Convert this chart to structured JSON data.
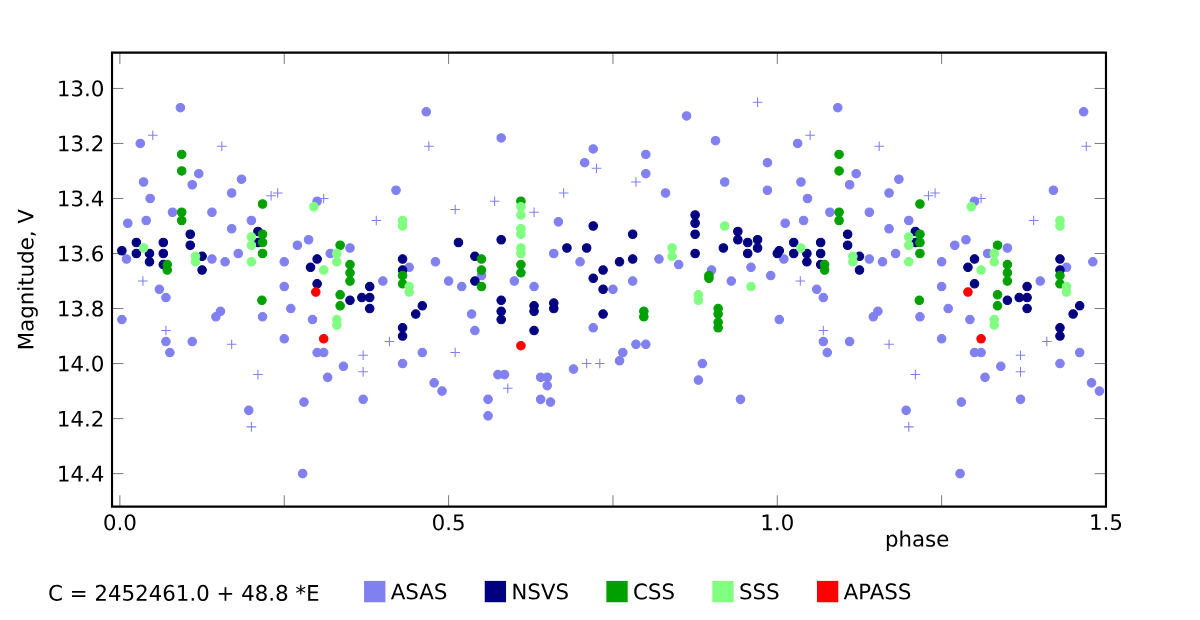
{
  "chart_data": {
    "type": "scatter",
    "xlabel": "phase",
    "ylabel": "Magnitude, V",
    "annotations": [
      "C = 2452461.0 + 48.8 *E"
    ],
    "xlim": [
      -0.012,
      1.5
    ],
    "ylim": [
      14.52,
      12.87
    ],
    "xticks": [
      {
        "value": 0,
        "label": "0.0"
      },
      {
        "value": 0.25,
        "label": null
      },
      {
        "value": 0.5,
        "label": "0.5"
      },
      {
        "value": 0.75,
        "label": null
      },
      {
        "value": 1,
        "label": "1.0"
      },
      {
        "value": 1.25,
        "label": null
      },
      {
        "value": 1.5,
        "label": "1.5"
      }
    ],
    "yticks": [
      {
        "value": 13,
        "label": "13.0"
      },
      13.2,
      13.4,
      13.6,
      13.8,
      {
        "value": 14,
        "label": "14.0"
      },
      14.2,
      14.4
    ],
    "grid": false,
    "legend": "bottom",
    "series": [
      {
        "name": "ASAS",
        "color": "#8080f0",
        "marker": "circle",
        "x": [
          0.003,
          0.012,
          0.01,
          0.031,
          0.036,
          0.04,
          0.046,
          0.06,
          0.07,
          0.07,
          0.076,
          0.08,
          0.092,
          0.11,
          0.11,
          0.12,
          0.14,
          0.14,
          0.146,
          0.153,
          0.16,
          0.17,
          0.17,
          0.185,
          0.18,
          0.196,
          0.2,
          0.217,
          0.25,
          0.25,
          0.25,
          0.26,
          0.27,
          0.278,
          0.28,
          0.287,
          0.293,
          0.3,
          0.3,
          0.31,
          0.316,
          0.32,
          0.34,
          0.35,
          0.37,
          0.4,
          0.42,
          0.43,
          0.44,
          0.46,
          0.466,
          0.478,
          0.48,
          0.49,
          0.5,
          0.52,
          0.535,
          0.54,
          0.55,
          0.56,
          0.56,
          0.575,
          0.58,
          0.585,
          0.6,
          0.63,
          0.64,
          0.64,
          0.65,
          0.65,
          0.655,
          0.66,
          0.667,
          0.69,
          0.7,
          0.707,
          0.72,
          0.72,
          0.75,
          0.76,
          0.765,
          0.78,
          0.785,
          0.8,
          0.8,
          0.8,
          0.82,
          0.83,
          0.85,
          0.862,
          0.886,
          0.88,
          0.9,
          0.906,
          0.92,
          0.93,
          0.944,
          0.96,
          0.985,
          0.985,
          0.99,
          1.003,
          1.012,
          1.01,
          1.031,
          1.036,
          1.04,
          1.046,
          1.06,
          1.07,
          1.07,
          1.076,
          1.08,
          1.092,
          1.11,
          1.11,
          1.12,
          1.14,
          1.14,
          1.146,
          1.153,
          1.16,
          1.17,
          1.17,
          1.185,
          1.18,
          1.196,
          1.2,
          1.217,
          1.25,
          1.25,
          1.25,
          1.26,
          1.27,
          1.278,
          1.28,
          1.287,
          1.293,
          1.3,
          1.3,
          1.31,
          1.316,
          1.32,
          1.34,
          1.35,
          1.37,
          1.4,
          1.42,
          1.43,
          1.44,
          1.46,
          1.466,
          1.478,
          1.48,
          1.49
        ],
        "values": [
          13.84,
          13.49,
          13.62,
          13.2,
          13.34,
          13.48,
          13.4,
          13.73,
          13.76,
          13.92,
          13.96,
          13.45,
          13.07,
          13.35,
          13.92,
          13.31,
          13.45,
          13.62,
          13.83,
          13.81,
          13.63,
          13.38,
          13.51,
          13.33,
          13.6,
          14.17,
          13.48,
          13.83,
          13.72,
          13.91,
          13.63,
          13.8,
          13.57,
          14.4,
          14.14,
          13.55,
          13.84,
          13.41,
          13.96,
          13.96,
          14.05,
          13.6,
          14.01,
          13.58,
          14.13,
          13.7,
          13.37,
          14.0,
          13.65,
          13.96,
          13.085,
          14.07,
          13.63,
          14.1,
          13.7,
          13.72,
          13.82,
          13.88,
          13.68,
          14.19,
          14.13,
          14.04,
          13.18,
          14.04,
          13.7,
          13.72,
          14.05,
          14.13,
          14.05,
          14.08,
          14.14,
          13.6,
          13.485,
          14.02,
          13.63,
          13.27,
          13.22,
          13.87,
          13.73,
          13.99,
          13.96,
          13.7,
          13.93,
          13.24,
          13.31,
          13.93,
          13.62,
          13.38,
          13.64,
          13.1,
          14.0,
          14.06,
          13.66,
          13.19,
          13.34,
          13.7,
          14.13,
          13.65,
          13.27,
          13.37,
          13.68,
          13.84,
          13.49,
          13.62,
          13.2,
          13.34,
          13.48,
          13.4,
          13.73,
          13.76,
          13.92,
          13.96,
          13.45,
          13.07,
          13.35,
          13.92,
          13.31,
          13.45,
          13.62,
          13.83,
          13.81,
          13.63,
          13.38,
          13.51,
          13.33,
          13.6,
          14.17,
          13.48,
          13.83,
          13.72,
          13.91,
          13.63,
          13.8,
          13.57,
          14.4,
          14.14,
          13.55,
          13.84,
          13.41,
          13.96,
          13.96,
          14.05,
          13.6,
          14.01,
          13.58,
          14.13,
          13.7,
          13.37,
          14.0,
          13.65,
          13.96,
          13.085,
          14.07,
          13.63,
          14.1
        ]
      },
      {
        "color": "#8080f0",
        "marker": "cross",
        "x": [
          0.035,
          0.05,
          0.07,
          0.155,
          0.17,
          0.2,
          0.21,
          0.23,
          0.24,
          0.31,
          0.37,
          0.37,
          0.39,
          0.41,
          0.47,
          0.51,
          0.51,
          0.57,
          0.59,
          0.63,
          0.675,
          0.71,
          0.725,
          0.73,
          0.785,
          0.97,
          1.035,
          1.05,
          1.07,
          1.155,
          1.17,
          1.2,
          1.21,
          1.23,
          1.24,
          1.31,
          1.37,
          1.37,
          1.39,
          1.41,
          1.47
        ],
        "values": [
          13.7,
          13.17,
          13.88,
          13.21,
          13.93,
          14.23,
          14.04,
          13.39,
          13.38,
          13.4,
          13.97,
          14.03,
          13.48,
          13.92,
          13.21,
          13.44,
          13.96,
          13.41,
          14.09,
          13.45,
          13.38,
          14.0,
          13.29,
          14.0,
          13.34,
          13.05,
          13.7,
          13.17,
          13.88,
          13.21,
          13.93,
          14.23,
          14.04,
          13.39,
          13.38,
          13.4,
          13.97,
          14.03,
          13.48,
          13.92,
          13.21
        ]
      },
      {
        "name": "NSVS",
        "color": "#000080",
        "marker": "circle",
        "x": [
          0.003,
          0.025,
          0.025,
          0.045,
          0.045,
          0.066,
          0.066,
          0.066,
          0.107,
          0.107,
          0.125,
          0.125,
          0.21,
          0.21,
          0.29,
          0.3,
          0.3,
          0.35,
          0.368,
          0.38,
          0.38,
          0.38,
          0.43,
          0.43,
          0.43,
          0.43,
          0.45,
          0.46,
          0.515,
          0.54,
          0.54,
          0.58,
          0.58,
          0.58,
          0.58,
          0.63,
          0.63,
          0.63,
          0.66,
          0.66,
          0.68,
          0.71,
          0.72,
          0.72,
          0.735,
          0.735,
          0.735,
          0.76,
          0.78,
          0.78,
          0.875,
          0.875,
          0.875,
          0.875,
          0.918,
          0.94,
          0.94,
          0.955,
          0.955,
          0.97,
          0.97,
          1.0,
          1.003,
          1.025,
          1.025,
          1.045,
          1.045,
          1.066,
          1.066,
          1.066,
          1.107,
          1.107,
          1.125,
          1.125,
          1.21,
          1.21,
          1.29,
          1.3,
          1.3,
          1.35,
          1.368,
          1.38,
          1.38,
          1.38,
          1.43,
          1.43,
          1.43,
          1.43,
          1.45,
          1.46
        ],
        "values": [
          13.59,
          13.56,
          13.6,
          13.6,
          13.63,
          13.56,
          13.6,
          13.64,
          13.53,
          13.57,
          13.61,
          13.66,
          13.52,
          13.56,
          13.65,
          13.62,
          13.71,
          13.77,
          13.76,
          13.72,
          13.76,
          13.8,
          13.62,
          13.66,
          13.87,
          13.9,
          13.82,
          13.79,
          13.56,
          13.61,
          13.7,
          13.55,
          13.77,
          13.81,
          13.84,
          13.79,
          13.81,
          13.88,
          13.78,
          13.8,
          13.58,
          13.58,
          13.5,
          13.69,
          13.66,
          13.73,
          13.82,
          13.63,
          13.53,
          13.62,
          13.46,
          13.49,
          13.53,
          13.6,
          13.58,
          13.52,
          13.55,
          13.56,
          13.6,
          13.55,
          13.58,
          13.6,
          13.59,
          13.56,
          13.6,
          13.6,
          13.63,
          13.56,
          13.6,
          13.64,
          13.53,
          13.57,
          13.61,
          13.66,
          13.52,
          13.56,
          13.65,
          13.62,
          13.71,
          13.77,
          13.76,
          13.72,
          13.76,
          13.8,
          13.62,
          13.66,
          13.87,
          13.9,
          13.82,
          13.79
        ]
      },
      {
        "name": "CSS",
        "color": "#00a000",
        "marker": "circle",
        "x": [
          0.072,
          0.072,
          0.094,
          0.094,
          0.094,
          0.094,
          0.216,
          0.217,
          0.217,
          0.217,
          0.217,
          0.335,
          0.335,
          0.335,
          0.35,
          0.35,
          0.35,
          0.43,
          0.43,
          0.55,
          0.55,
          0.55,
          0.61,
          0.61,
          0.61,
          0.797,
          0.797,
          0.896,
          0.896,
          0.91,
          0.91,
          0.91,
          0.91,
          1.072,
          1.072,
          1.094,
          1.094,
          1.094,
          1.094,
          1.216,
          1.217,
          1.217,
          1.217,
          1.217,
          1.335,
          1.335,
          1.335,
          1.35,
          1.35,
          1.35,
          1.43,
          1.43
        ],
        "values": [
          13.64,
          13.66,
          13.24,
          13.3,
          13.45,
          13.48,
          13.77,
          13.42,
          13.53,
          13.56,
          13.6,
          13.57,
          13.75,
          13.79,
          13.64,
          13.67,
          13.7,
          13.68,
          13.71,
          13.62,
          13.66,
          13.72,
          13.41,
          13.64,
          13.67,
          13.81,
          13.83,
          13.68,
          13.69,
          13.8,
          13.82,
          13.85,
          13.87,
          13.64,
          13.66,
          13.24,
          13.3,
          13.45,
          13.48,
          13.77,
          13.42,
          13.53,
          13.56,
          13.6,
          13.57,
          13.75,
          13.79,
          13.64,
          13.67,
          13.7,
          13.68,
          13.71
        ]
      },
      {
        "name": "SSS",
        "color": "#80ff80",
        "marker": "circle",
        "x": [
          0.036,
          0.115,
          0.115,
          0.2,
          0.2,
          0.2,
          0.295,
          0.31,
          0.33,
          0.33,
          0.33,
          0.33,
          0.43,
          0.43,
          0.44,
          0.44,
          0.61,
          0.61,
          0.61,
          0.61,
          0.61,
          0.61,
          0.84,
          0.84,
          0.88,
          0.88,
          0.92,
          0.96,
          1.036,
          1.115,
          1.115,
          1.2,
          1.2,
          1.2,
          1.295,
          1.31,
          1.33,
          1.33,
          1.33,
          1.33,
          1.43,
          1.43,
          1.44,
          1.44
        ],
        "values": [
          13.58,
          13.61,
          13.63,
          13.54,
          13.57,
          13.63,
          13.43,
          13.66,
          13.6,
          13.63,
          13.84,
          13.86,
          13.48,
          13.5,
          13.72,
          13.74,
          13.43,
          13.46,
          13.51,
          13.53,
          13.58,
          13.6,
          13.58,
          13.61,
          13.75,
          13.77,
          13.5,
          13.72,
          13.58,
          13.61,
          13.63,
          13.54,
          13.57,
          13.63,
          13.43,
          13.66,
          13.6,
          13.63,
          13.84,
          13.86,
          13.48,
          13.5,
          13.72,
          13.74
        ]
      },
      {
        "name": "APASS",
        "color": "#ff0000",
        "marker": "circle",
        "x": [
          0.298,
          0.31,
          0.61,
          1.29,
          1.31
        ],
        "values": [
          13.74,
          13.91,
          13.935,
          13.74,
          13.91
        ]
      }
    ]
  }
}
